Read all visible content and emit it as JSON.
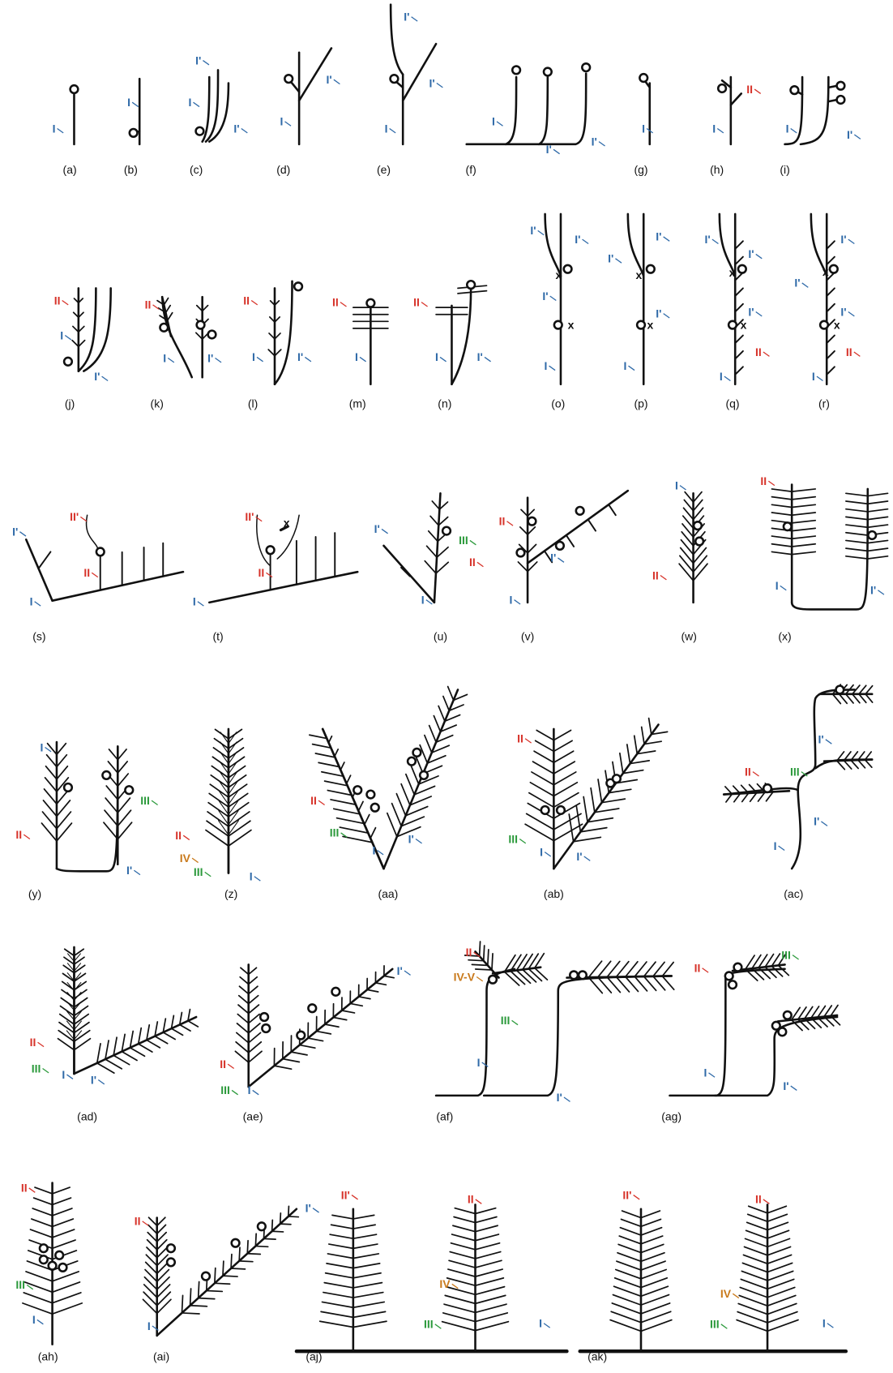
{
  "panels": [
    {
      "caption": "(a)",
      "labels": [
        "I"
      ]
    },
    {
      "caption": "(b)",
      "labels": [
        "I"
      ]
    },
    {
      "caption": "(c)",
      "labels": [
        "I'",
        "I",
        "I'"
      ]
    },
    {
      "caption": "(d)",
      "labels": [
        "I'",
        "I"
      ]
    },
    {
      "caption": "(e)",
      "labels": [
        "I'",
        "I'",
        "I"
      ]
    },
    {
      "caption": "(f)",
      "labels": [
        "I",
        "I'",
        "I'"
      ]
    },
    {
      "caption": "(g)",
      "labels": [
        "I"
      ]
    },
    {
      "caption": "(h)",
      "labels": [
        "II",
        "I"
      ]
    },
    {
      "caption": "(i)",
      "labels": [
        "I",
        "I'"
      ]
    },
    {
      "caption": "(j)",
      "labels": [
        "II",
        "I",
        "I'"
      ]
    },
    {
      "caption": "(k)",
      "labels": [
        "II",
        "I",
        "I'"
      ]
    },
    {
      "caption": "(l)",
      "labels": [
        "II",
        "I",
        "I'"
      ]
    },
    {
      "caption": "(m)",
      "labels": [
        "II",
        "I"
      ]
    },
    {
      "caption": "(n)",
      "labels": [
        "II",
        "I",
        "I'"
      ]
    },
    {
      "caption": "(o)",
      "labels": [
        "I'",
        "I'",
        "I'",
        "I",
        "x",
        "x"
      ]
    },
    {
      "caption": "(p)",
      "labels": [
        "I'",
        "I'",
        "I'",
        "I",
        "x",
        "x"
      ]
    },
    {
      "caption": "(q)",
      "labels": [
        "I'",
        "I'",
        "I'",
        "II",
        "I",
        "x",
        "x"
      ]
    },
    {
      "caption": "(r)",
      "labels": [
        "I'",
        "I'",
        "I'",
        "II",
        "I",
        "x",
        "x"
      ]
    },
    {
      "caption": "(s)",
      "labels": [
        "I'",
        "II'",
        "II",
        "I"
      ]
    },
    {
      "caption": "(t)",
      "labels": [
        "II'",
        "II",
        "I",
        "x"
      ]
    },
    {
      "caption": "(u)",
      "labels": [
        "I'",
        "III",
        "II",
        "I"
      ]
    },
    {
      "caption": "(v)",
      "labels": [
        "II",
        "I'",
        "I"
      ]
    },
    {
      "caption": "(w)",
      "labels": [
        "I",
        "II"
      ]
    },
    {
      "caption": "(x)",
      "labels": [
        "II",
        "I",
        "I'"
      ]
    },
    {
      "caption": "(y)",
      "labels": [
        "I",
        "II",
        "III",
        "I'"
      ]
    },
    {
      "caption": "(z)",
      "labels": [
        "II",
        "IV",
        "III",
        "I"
      ]
    },
    {
      "caption": "(aa)",
      "labels": [
        "II",
        "III",
        "I",
        "I'"
      ]
    },
    {
      "caption": "(ab)",
      "labels": [
        "II",
        "III",
        "I",
        "I'"
      ]
    },
    {
      "caption": "(ac)",
      "labels": [
        "II",
        "III",
        "I'",
        "I'",
        "I"
      ]
    },
    {
      "caption": "(ad)",
      "labels": [
        "II",
        "III",
        "I",
        "I'"
      ]
    },
    {
      "caption": "(ae)",
      "labels": [
        "I'",
        "II",
        "III",
        "I"
      ]
    },
    {
      "caption": "(af)",
      "labels": [
        "II",
        "IV-V",
        "III",
        "I",
        "I'"
      ]
    },
    {
      "caption": "(ag)",
      "labels": [
        "II",
        "III",
        "I",
        "I'"
      ]
    },
    {
      "caption": "(ah)",
      "labels": [
        "II",
        "III",
        "I"
      ]
    },
    {
      "caption": "(ai)",
      "labels": [
        "II",
        "I'",
        "I"
      ]
    },
    {
      "caption": "(aj)",
      "labels": [
        "II'",
        "II",
        "IV",
        "III",
        "I"
      ]
    },
    {
      "caption": "(ak)",
      "labels": [
        "II'",
        "II",
        "IV",
        "III",
        "I"
      ]
    }
  ]
}
